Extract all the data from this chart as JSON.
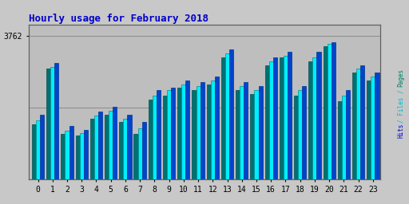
{
  "title": "Hourly usage for February 2018",
  "ytick_label": "3762",
  "hours": [
    0,
    1,
    2,
    3,
    4,
    5,
    6,
    7,
    8,
    9,
    10,
    11,
    12,
    13,
    14,
    15,
    16,
    17,
    18,
    19,
    20,
    21,
    22,
    23
  ],
  "pages": [
    1450,
    2900,
    1200,
    1150,
    1600,
    1700,
    1500,
    1200,
    2100,
    2200,
    2400,
    2350,
    2500,
    3200,
    2350,
    2250,
    3000,
    3200,
    2200,
    3100,
    3500,
    2050,
    2800,
    2600
  ],
  "files": [
    1550,
    2950,
    1280,
    1220,
    1680,
    1800,
    1600,
    1350,
    2200,
    2350,
    2500,
    2450,
    2600,
    3300,
    2450,
    2350,
    3100,
    3250,
    2350,
    3200,
    3550,
    2200,
    2900,
    2700
  ],
  "hits": [
    1700,
    3050,
    1400,
    1300,
    1780,
    1900,
    1700,
    1500,
    2350,
    2400,
    2600,
    2550,
    2700,
    3400,
    2550,
    2450,
    3200,
    3350,
    2450,
    3350,
    3600,
    2350,
    3000,
    2800
  ],
  "color_pages": "#007070",
  "color_files": "#00EEFF",
  "color_hits": "#0044CC",
  "bg_color": "#C8C8C8",
  "plot_bg": "#BEBEBE",
  "title_color": "#0000CC",
  "ylabel_color_pages": "#008060",
  "ylabel_color_files": "#00BBCC",
  "ylabel_color_hits": "#0000CC",
  "max_val": 3762,
  "gridline_val": 1881
}
